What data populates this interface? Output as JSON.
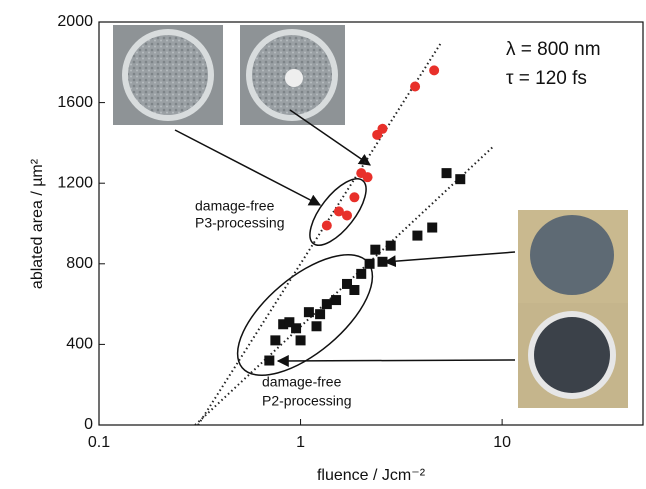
{
  "chart_data": {
    "type": "scatter",
    "x_label": "fluence / Jcm⁻²",
    "y_label": "ablated area / µm²",
    "xlim": [
      0.1,
      50
    ],
    "xticks": [
      0.1,
      1,
      10
    ],
    "log_x": true,
    "ylim": [
      0,
      2000
    ],
    "yticks": [
      0,
      400,
      800,
      1200,
      1600,
      2000
    ],
    "series": [
      {
        "marker": "circle",
        "color": "#e8302a",
        "x": [
          1.35,
          1.55,
          1.7,
          1.85,
          2.0,
          2.15,
          2.4,
          2.55,
          3.7,
          4.6
        ],
        "values": [
          990,
          1060,
          1040,
          1130,
          1250,
          1230,
          1440,
          1470,
          1680,
          1760
        ]
      },
      {
        "marker": "square",
        "color": "#111111",
        "x": [
          0.7,
          0.75,
          0.82,
          0.88,
          0.95,
          1.0,
          1.1,
          1.2,
          1.25,
          1.35,
          1.5,
          1.7,
          1.85,
          2.0,
          2.2,
          2.35,
          2.55,
          2.8,
          3.8,
          4.5,
          5.3,
          6.2
        ],
        "values": [
          320,
          420,
          500,
          510,
          480,
          420,
          560,
          490,
          550,
          600,
          620,
          700,
          670,
          750,
          800,
          870,
          810,
          890,
          940,
          980,
          1250,
          1220
        ]
      }
    ],
    "fit_lines": [
      {
        "x": [
          0.31,
          5.0
        ],
        "values": [
          0,
          1900
        ]
      },
      {
        "x": [
          0.3,
          9.0
        ],
        "values": [
          0,
          1380
        ]
      }
    ],
    "annotations": [
      "λ = 800 nm",
      "τ = 120 fs",
      "damage-free",
      "P3-processing",
      "damage-free",
      "P2-processing"
    ]
  }
}
